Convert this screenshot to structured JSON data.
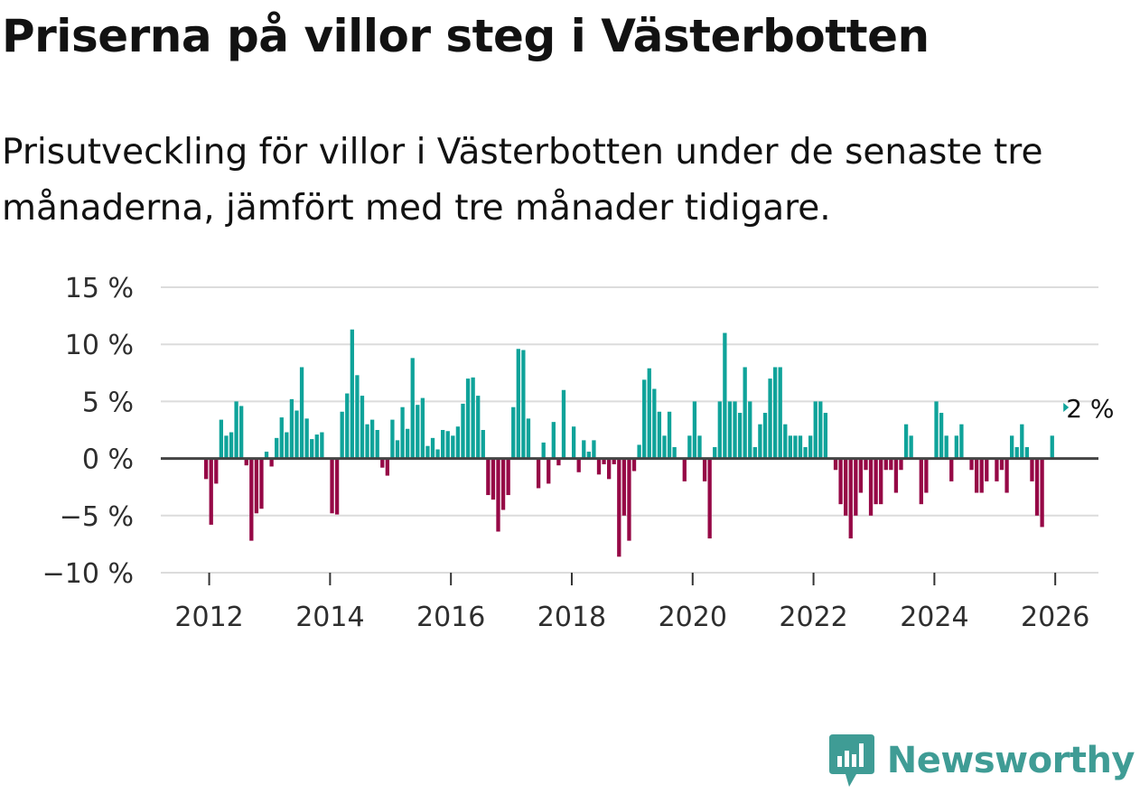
{
  "brand": {
    "name": "Newsworthy",
    "color": "#3f9c95"
  },
  "colors": {
    "positive": "#0fa39a",
    "negative": "#960846",
    "zero_line": "#444444",
    "grid": "#dcdcdc"
  },
  "chart_data": {
    "type": "bar",
    "title": "Priserna på villor steg i Västerbotten",
    "subtitle": "Prisutveckling för villor i Västerbotten under de senaste tre månaderna, jämfört med tre månader tidigare.",
    "xlabel": "",
    "ylabel": "",
    "ylim": [
      -10,
      15
    ],
    "y_ticks": [
      {
        "value": 15,
        "label": "15 %"
      },
      {
        "value": 10,
        "label": "10 %"
      },
      {
        "value": 5,
        "label": "5 %"
      },
      {
        "value": 0,
        "label": "0 %"
      },
      {
        "value": -5,
        "label": "−5 %"
      },
      {
        "value": -10,
        "label": "−10 %"
      }
    ],
    "x_ticks": [
      "2012",
      "2014",
      "2016",
      "2018",
      "2020",
      "2022",
      "2024",
      "2026"
    ],
    "x_start": "2011-12",
    "frequency": "monthly",
    "annotation": {
      "text": "2 %",
      "index": 176
    },
    "values": [
      -1.8,
      -5.8,
      -2.2,
      3.4,
      2.0,
      2.3,
      5.0,
      4.6,
      -0.6,
      -7.2,
      -4.8,
      -4.4,
      0.6,
      -0.7,
      1.8,
      3.6,
      2.3,
      5.2,
      4.2,
      8.0,
      3.5,
      1.7,
      2.1,
      2.3,
      0.0,
      -4.8,
      -4.9,
      4.1,
      5.7,
      11.3,
      7.3,
      5.5,
      3.0,
      3.4,
      2.5,
      -0.8,
      -1.5,
      3.4,
      1.6,
      4.5,
      2.6,
      8.8,
      4.7,
      5.3,
      1.1,
      1.8,
      0.8,
      2.5,
      2.4,
      2.0,
      2.8,
      4.8,
      7.0,
      7.1,
      5.5,
      2.5,
      -3.2,
      -3.6,
      -6.4,
      -4.5,
      -3.2,
      4.5,
      9.6,
      9.5,
      3.5,
      0.0,
      -2.6,
      1.4,
      -2.2,
      3.2,
      -0.6,
      6.0,
      0.0,
      2.8,
      -1.2,
      1.6,
      0.6,
      1.6,
      -1.4,
      -0.5,
      -1.8,
      -0.5,
      -8.6,
      -5.0,
      -7.2,
      -1.1,
      1.2,
      6.9,
      7.9,
      6.1,
      4.1,
      2.0,
      4.1,
      1.0,
      0.0,
      -2.0,
      2.0,
      5.0,
      2.0,
      -2.0,
      -7.0,
      1.0,
      5.0,
      11.0,
      5.0,
      5.0,
      4.0,
      8.0,
      5.0,
      1.0,
      3.0,
      4.0,
      7.0,
      8.0,
      8.0,
      3.0,
      2.0,
      2.0,
      2.0,
      1.0,
      2.0,
      5.0,
      5.0,
      4.0,
      0.0,
      -1.0,
      -4.0,
      -5.0,
      -7.0,
      -5.0,
      -3.0,
      -1.0,
      -5.0,
      -4.0,
      -4.0,
      -1.0,
      -1.0,
      -3.0,
      -1.0,
      3.0,
      2.0,
      0.0,
      -4.0,
      -3.0,
      0.0,
      5.0,
      4.0,
      2.0,
      -2.0,
      2.0,
      3.0,
      0.0,
      -1.0,
      -3.0,
      -3.0,
      -2.0,
      0.0,
      -2.0,
      -1.0,
      -3.0,
      2.0,
      1.0,
      3.0,
      1.0,
      -2.0,
      -5.0,
      -6.0,
      0.0,
      2.0
    ]
  }
}
